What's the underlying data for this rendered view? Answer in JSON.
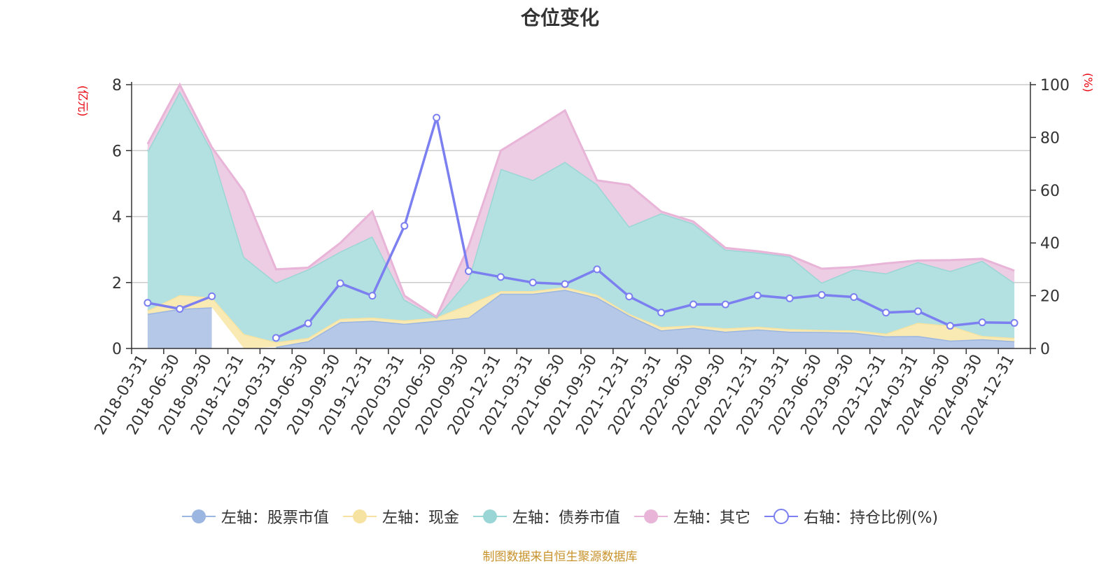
{
  "chart_data": {
    "type": "area",
    "title": "仓位变化",
    "left_axis_unit": "(亿元)",
    "right_axis_unit": "(%)",
    "left_ylim": [
      0,
      8
    ],
    "left_ticks": [
      "0",
      "2",
      "4",
      "6",
      "8"
    ],
    "right_ylim": [
      0,
      100
    ],
    "right_ticks": [
      "0",
      "20",
      "40",
      "60",
      "80",
      "100"
    ],
    "grid": true,
    "stacked": true,
    "legend_position": "bottom",
    "categories": [
      "2018-03-31",
      "2018-06-30",
      "2018-09-30",
      "2018-12-31",
      "2019-03-31",
      "2019-06-30",
      "2019-09-30",
      "2019-12-31",
      "2020-03-31",
      "2020-06-30",
      "2020-09-30",
      "2020-12-31",
      "2021-03-31",
      "2021-06-30",
      "2021-09-30",
      "2021-12-31",
      "2022-03-31",
      "2022-06-30",
      "2022-09-30",
      "2022-12-31",
      "2023-03-31",
      "2023-06-30",
      "2023-09-30",
      "2023-12-31",
      "2024-03-31",
      "2024-06-30",
      "2024-09-30",
      "2024-12-31"
    ],
    "series": [
      {
        "name": "左轴：股票市值",
        "axis": "left",
        "kind": "area",
        "color": "#9bb6e0",
        "fill": "#b6c8e8",
        "values": [
          1.05,
          1.2,
          1.25,
          null,
          0.05,
          0.22,
          0.8,
          0.84,
          0.75,
          0.84,
          0.94,
          1.66,
          1.66,
          1.78,
          1.55,
          1.0,
          0.55,
          0.63,
          0.51,
          0.58,
          0.51,
          0.5,
          0.48,
          0.37,
          0.38,
          0.24,
          0.28,
          0.22
        ]
      },
      {
        "name": "左轴：现金",
        "axis": "left",
        "kind": "area",
        "color": "#f7e3a1",
        "fill": "#f9eab3",
        "values": [
          0.1,
          0.42,
          0.3,
          0.44,
          0.14,
          0.1,
          0.1,
          0.1,
          0.1,
          0.1,
          0.4,
          0.08,
          0.08,
          0.08,
          0.08,
          0.05,
          0.1,
          0.07,
          0.1,
          0.08,
          0.08,
          0.06,
          0.07,
          0.08,
          0.4,
          0.45,
          0.1,
          0.1
        ]
      },
      {
        "name": "左轴：债券市值",
        "axis": "left",
        "kind": "area",
        "color": "#9bd6d6",
        "fill": "#b3e0e0",
        "values": [
          4.83,
          6.18,
          4.45,
          2.34,
          1.81,
          2.08,
          2.04,
          2.46,
          0.63,
          0.0,
          0.76,
          3.71,
          3.37,
          3.8,
          3.35,
          2.65,
          3.45,
          3.09,
          2.39,
          2.25,
          2.2,
          1.44,
          1.85,
          1.83,
          1.84,
          1.66,
          2.28,
          1.67
        ]
      },
      {
        "name": "左轴：其它",
        "axis": "left",
        "kind": "area",
        "color": "#e8b4d8",
        "fill": "#edcde3",
        "values": [
          0.22,
          0.2,
          0.1,
          1.98,
          0.4,
          0.05,
          0.26,
          0.76,
          0.12,
          0.02,
          1.0,
          0.55,
          1.49,
          1.56,
          0.12,
          1.26,
          0.05,
          0.06,
          0.05,
          0.04,
          0.03,
          0.42,
          0.07,
          0.3,
          0.05,
          0.33,
          0.06,
          0.37
        ]
      },
      {
        "name": "右轴：持仓比例(%)",
        "axis": "right",
        "kind": "line",
        "color": "#7b7ff0",
        "values": [
          17.3,
          15,
          19.8,
          null,
          4,
          9.5,
          24.7,
          20,
          46.5,
          87.5,
          29.3,
          27.1,
          25,
          24.4,
          30,
          19.7,
          13.6,
          16.7,
          16.7,
          20.1,
          19,
          20.3,
          19.5,
          13.6,
          14.1,
          8.6,
          9.9,
          9.7
        ]
      }
    ]
  },
  "source_note": "制图数据来自恒生聚源数据库"
}
